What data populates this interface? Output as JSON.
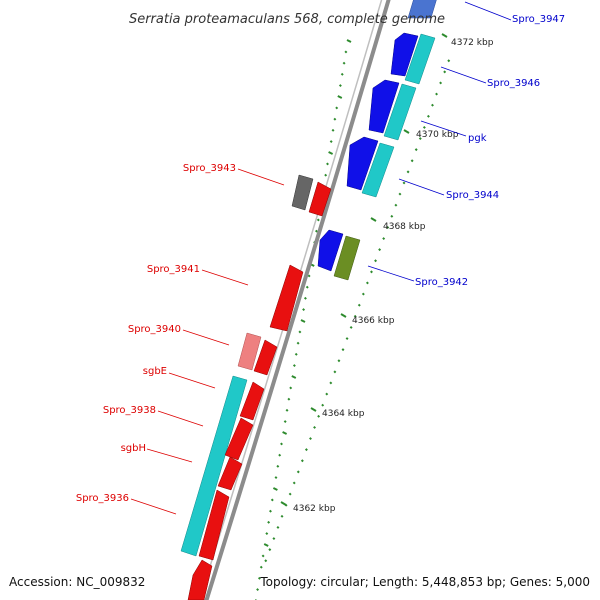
{
  "title": "Serratia proteamaculans 568, complete genome",
  "accession": "Accession: NC_009832",
  "summary": "Topology: circular; Length: 5,448,853 bp; Genes: 5,000",
  "colors": {
    "backbone": "#8c8c8c",
    "tick_dots": "#2e8b2e",
    "forward_label": "#0000cc",
    "reverse_label": "#dd0000",
    "blue_gene": "#1010e8",
    "cyan_gene": "#20c8c8",
    "red_gene": "#e81010",
    "pink_gene": "#ee8080",
    "grey_gene": "#666666",
    "olive_gene": "#6b8e23"
  },
  "scale_ticks": [
    "4372 kbp",
    "4370 kbp",
    "4368 kbp",
    "4366 kbp",
    "4364 kbp",
    "4362 kbp"
  ],
  "forward_labels": [
    "Spro_3947",
    "Spro_3946",
    "pgk",
    "Spro_3944",
    "Spro_3942"
  ],
  "reverse_labels": [
    "Spro_3943",
    "Spro_3941",
    "Spro_3940",
    "sgbE",
    "Spro_3938",
    "sgbH",
    "Spro_3936"
  ]
}
